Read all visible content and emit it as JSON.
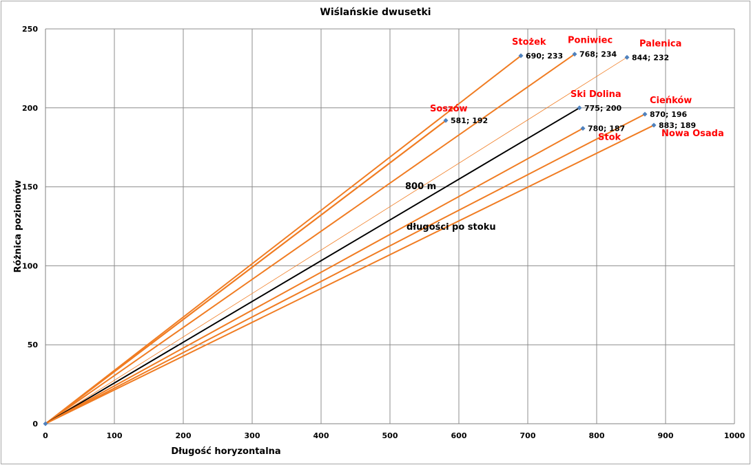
{
  "chart_data": {
    "type": "scatter",
    "title": "Wiślańskie dwusetki",
    "xlabel": "Długość horyzontalna",
    "ylabel": "Różnica poziomów",
    "xlim": [
      0,
      1000
    ],
    "ylim": [
      0,
      250
    ],
    "xticks": [
      0,
      100,
      200,
      300,
      400,
      500,
      600,
      700,
      800,
      900,
      1000
    ],
    "yticks": [
      0,
      50,
      100,
      150,
      200,
      250
    ],
    "grid": true,
    "line_color": "#f07c22",
    "reference_color": "#000000",
    "marker_color": "#4f81bd",
    "label_color": "#ff0000",
    "series": [
      {
        "name": "Stożek",
        "x": 690,
        "y": 233,
        "data_label": "690; 233"
      },
      {
        "name": "Poniwiec",
        "x": 768,
        "y": 234,
        "data_label": "768; 234"
      },
      {
        "name": "Palenica",
        "x": 844,
        "y": 232,
        "data_label": "844; 232",
        "thin": true
      },
      {
        "name": "Soszów",
        "x": 581,
        "y": 192,
        "data_label": "581; 192"
      },
      {
        "name": "Ski Dolina",
        "x": 775,
        "y": 200,
        "data_label": "775; 200",
        "reference": true
      },
      {
        "name": "Stok",
        "x": 780,
        "y": 187,
        "data_label": "780; 187"
      },
      {
        "name": "Cieńków",
        "x": 870,
        "y": 196,
        "data_label": "870; 196"
      },
      {
        "name": "Nowa Osada",
        "x": 883,
        "y": 189,
        "data_label": "883; 189"
      }
    ],
    "extra_lines": [
      {
        "x": 581,
        "y": 192,
        "origin_offset": 1
      }
    ],
    "annotations": [
      "800 m",
      "długości po stoku"
    ]
  }
}
